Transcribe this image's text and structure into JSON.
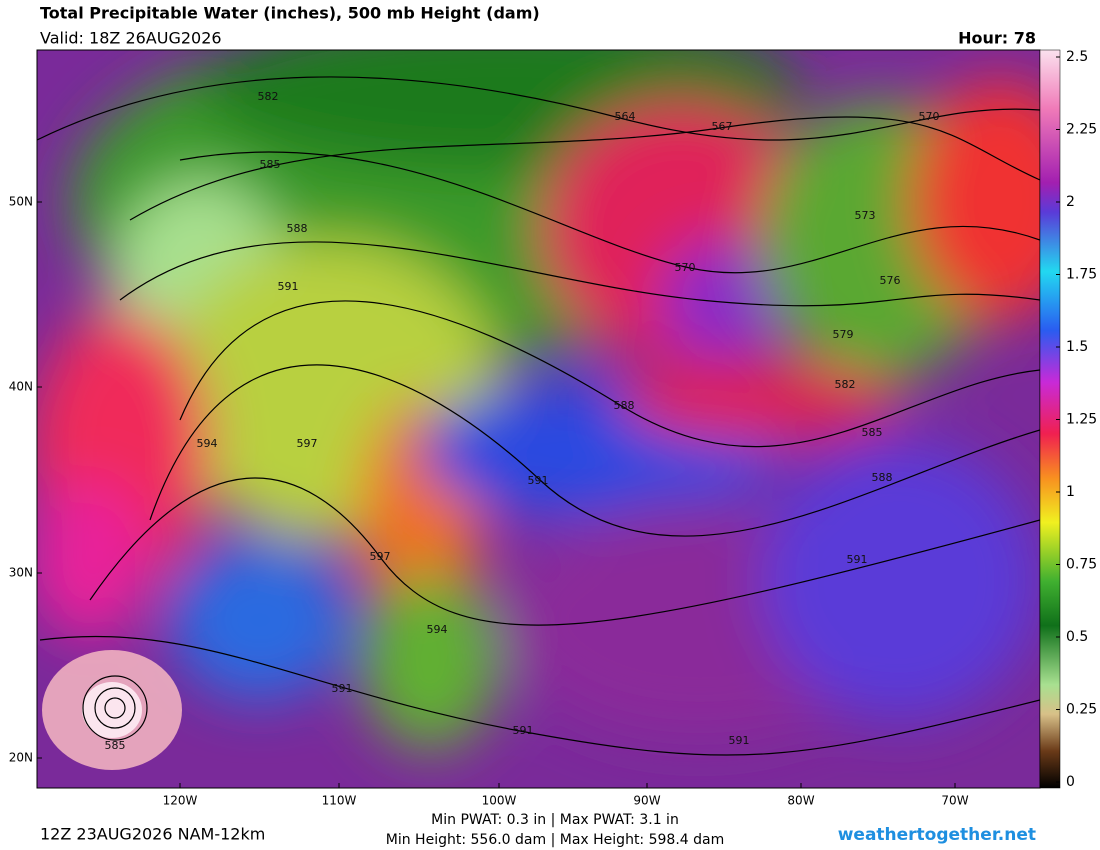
{
  "header": {
    "title": "Total Precipitable Water (inches), 500 mb Height (dam)",
    "valid": "Valid: 18Z 26AUG2026",
    "hour": "Hour: 78"
  },
  "colorbar": {
    "ticks": [
      "2.5",
      "2.25",
      "2",
      "1.75",
      "1.5",
      "1.25",
      "1",
      "0.75",
      "0.5",
      "0.25",
      "0"
    ]
  },
  "axes": {
    "lat_labels": [
      "50N",
      "40N",
      "30N",
      "20N"
    ],
    "lon_labels": [
      "120W",
      "110W",
      "100W",
      "90W",
      "80W",
      "70W"
    ]
  },
  "contour_labels": [
    "582",
    "585",
    "588",
    "591",
    "594",
    "597",
    "591",
    "588",
    "597",
    "594",
    "591",
    "585",
    "591",
    "591",
    "591",
    "588",
    "585",
    "582",
    "579",
    "576",
    "573",
    "570",
    "567",
    "564",
    "570"
  ],
  "footer": {
    "run": "12Z 23AUG2026 NAM-12km",
    "stats_pwat": "Min PWAT:   0.3 in | Max PWAT:   3.1 in",
    "stats_height": "Min Height: 556.0 dam | Max Height: 598.4 dam",
    "site": "weathertogether.net"
  }
}
